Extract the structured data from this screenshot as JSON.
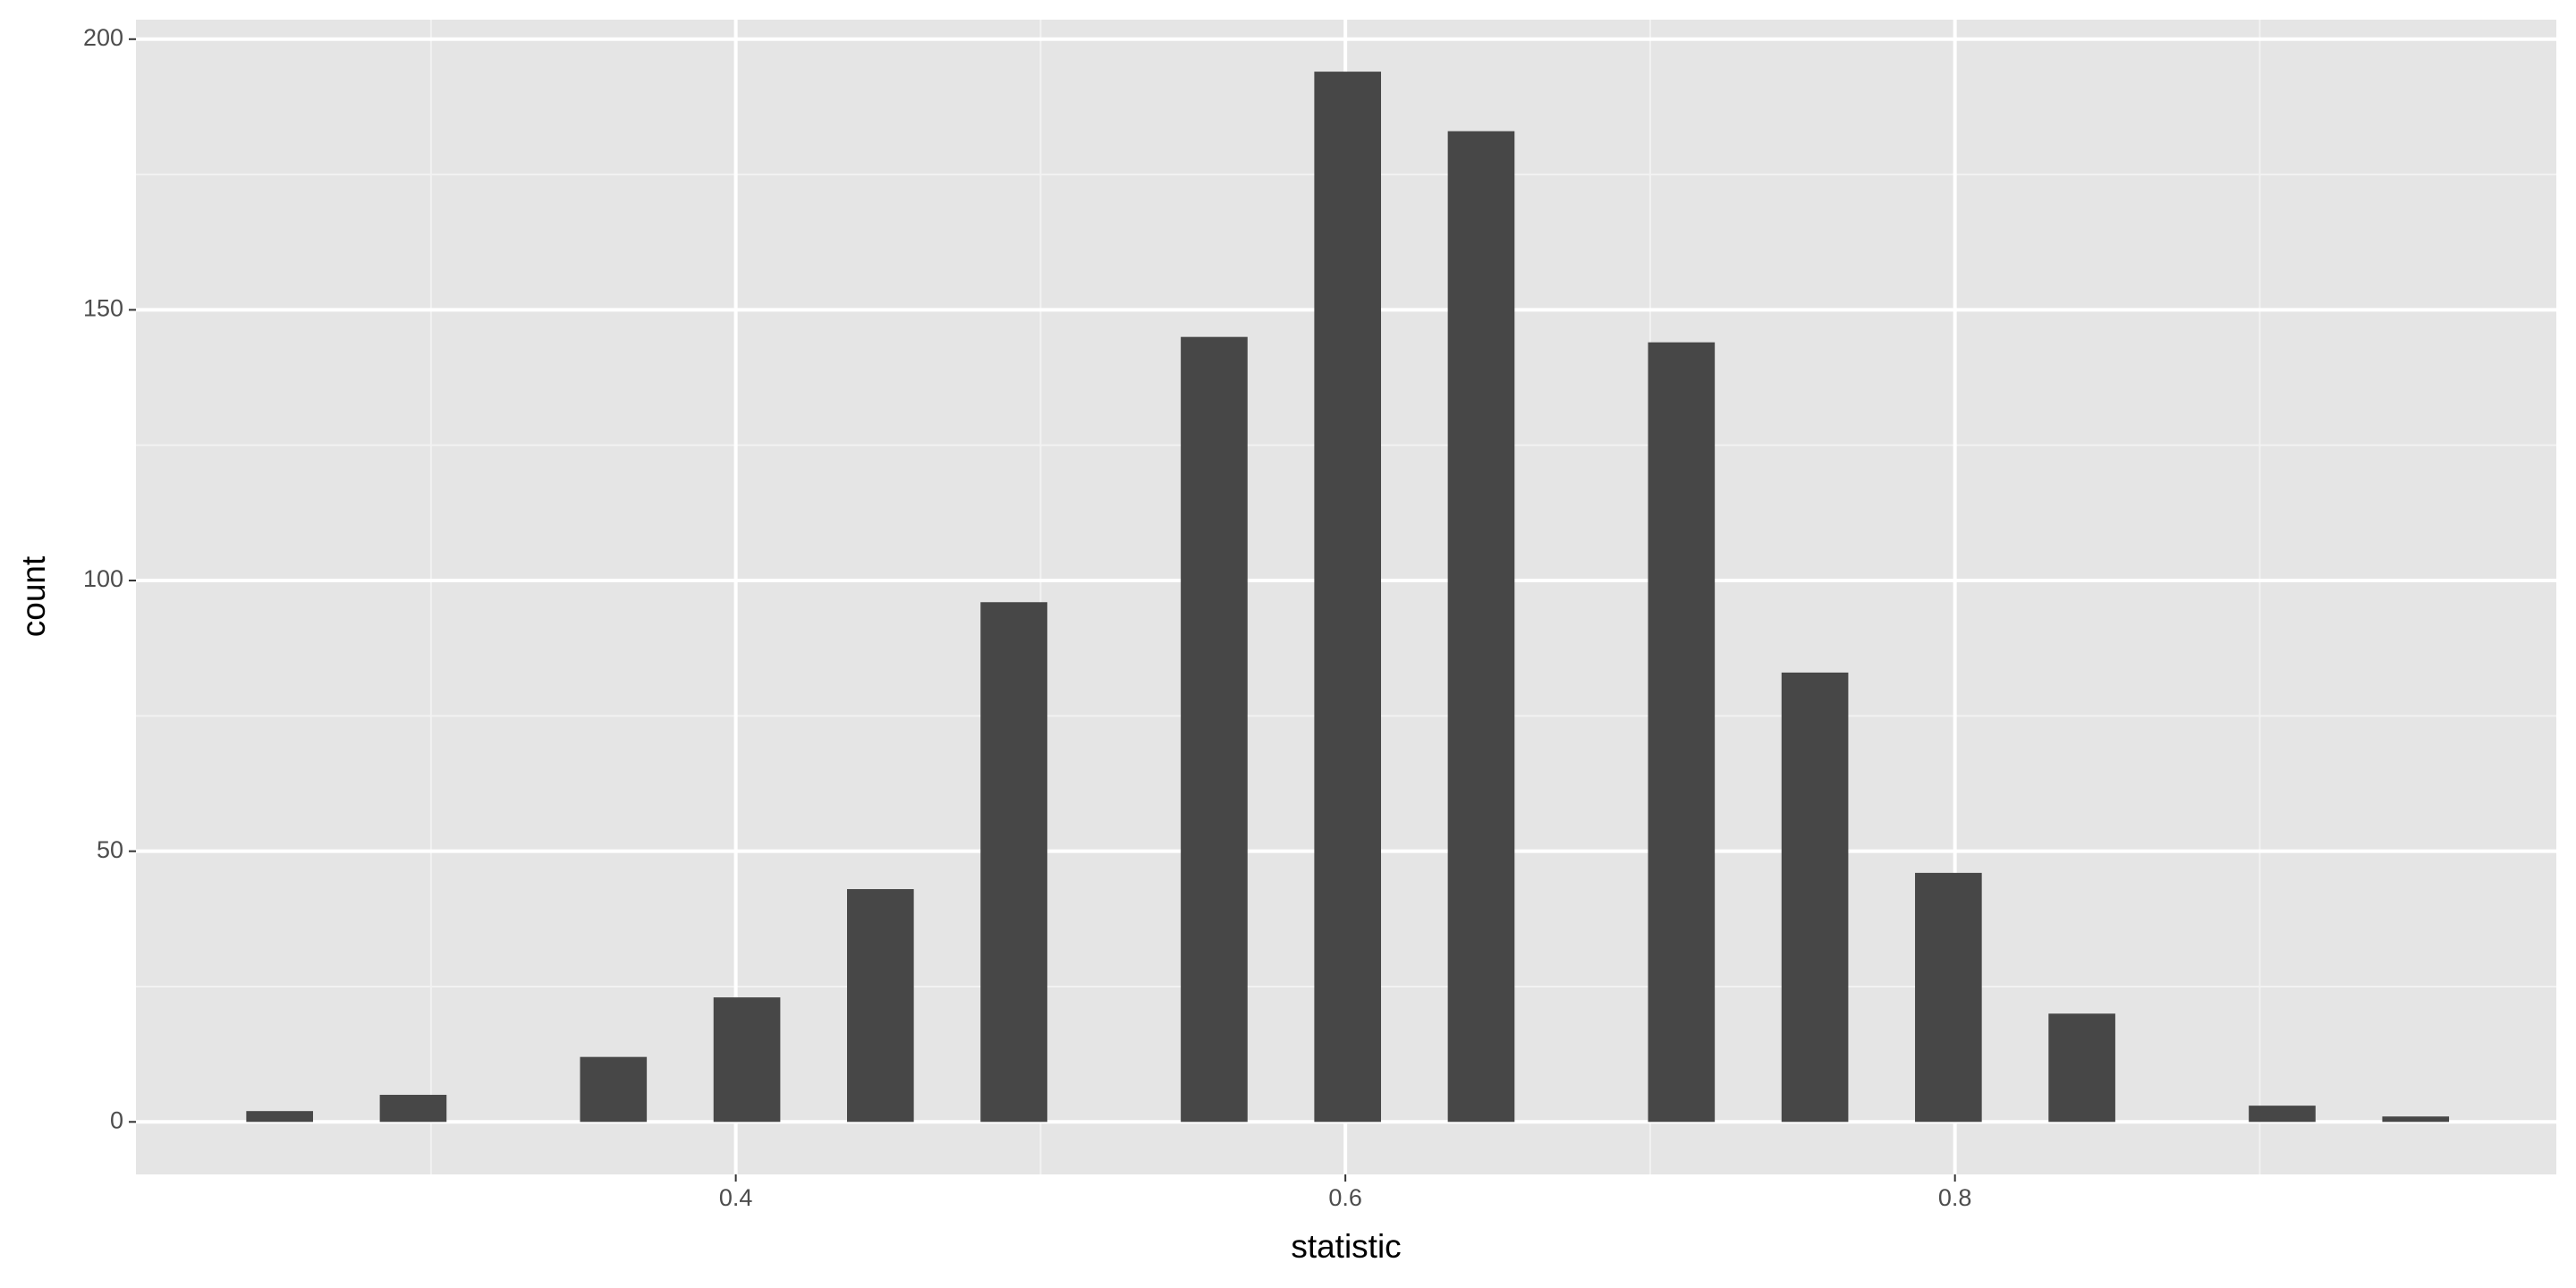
{
  "chart_data": {
    "type": "histogram",
    "x_label": "statistic",
    "y_label": "count",
    "bins": [
      0.2394,
      0.2613,
      0.2832,
      0.3051,
      0.327,
      0.3489,
      0.3708,
      0.3927,
      0.4146,
      0.4365,
      0.4584,
      0.4803,
      0.5022,
      0.5241,
      0.546,
      0.5679,
      0.5898,
      0.6117,
      0.6336,
      0.6555,
      0.6774,
      0.6993,
      0.7212,
      0.7431,
      0.765,
      0.7869,
      0.8088,
      0.8307,
      0.8526,
      0.8745,
      0.8964,
      0.9183,
      0.9402,
      0.9621
    ],
    "values": [
      2,
      0,
      5,
      0,
      0,
      12,
      0,
      23,
      0,
      43,
      0,
      96,
      0,
      0,
      145,
      0,
      194,
      0,
      183,
      0,
      0,
      144,
      0,
      83,
      0,
      46,
      0,
      20,
      0,
      0,
      3,
      0,
      1
    ],
    "color": "#474747",
    "xlim": [
      0.2032,
      0.9973
    ],
    "xticks": [
      0.4,
      0.6,
      0.8
    ],
    "x_minor_ticks": [
      0.3,
      0.5,
      0.7,
      0.9
    ],
    "ylim": [
      -9.7,
      203.6
    ],
    "yticks": [
      0,
      50,
      100,
      150,
      200
    ],
    "y_minor_ticks": [
      25,
      75,
      125,
      175
    ],
    "grid": true
  }
}
